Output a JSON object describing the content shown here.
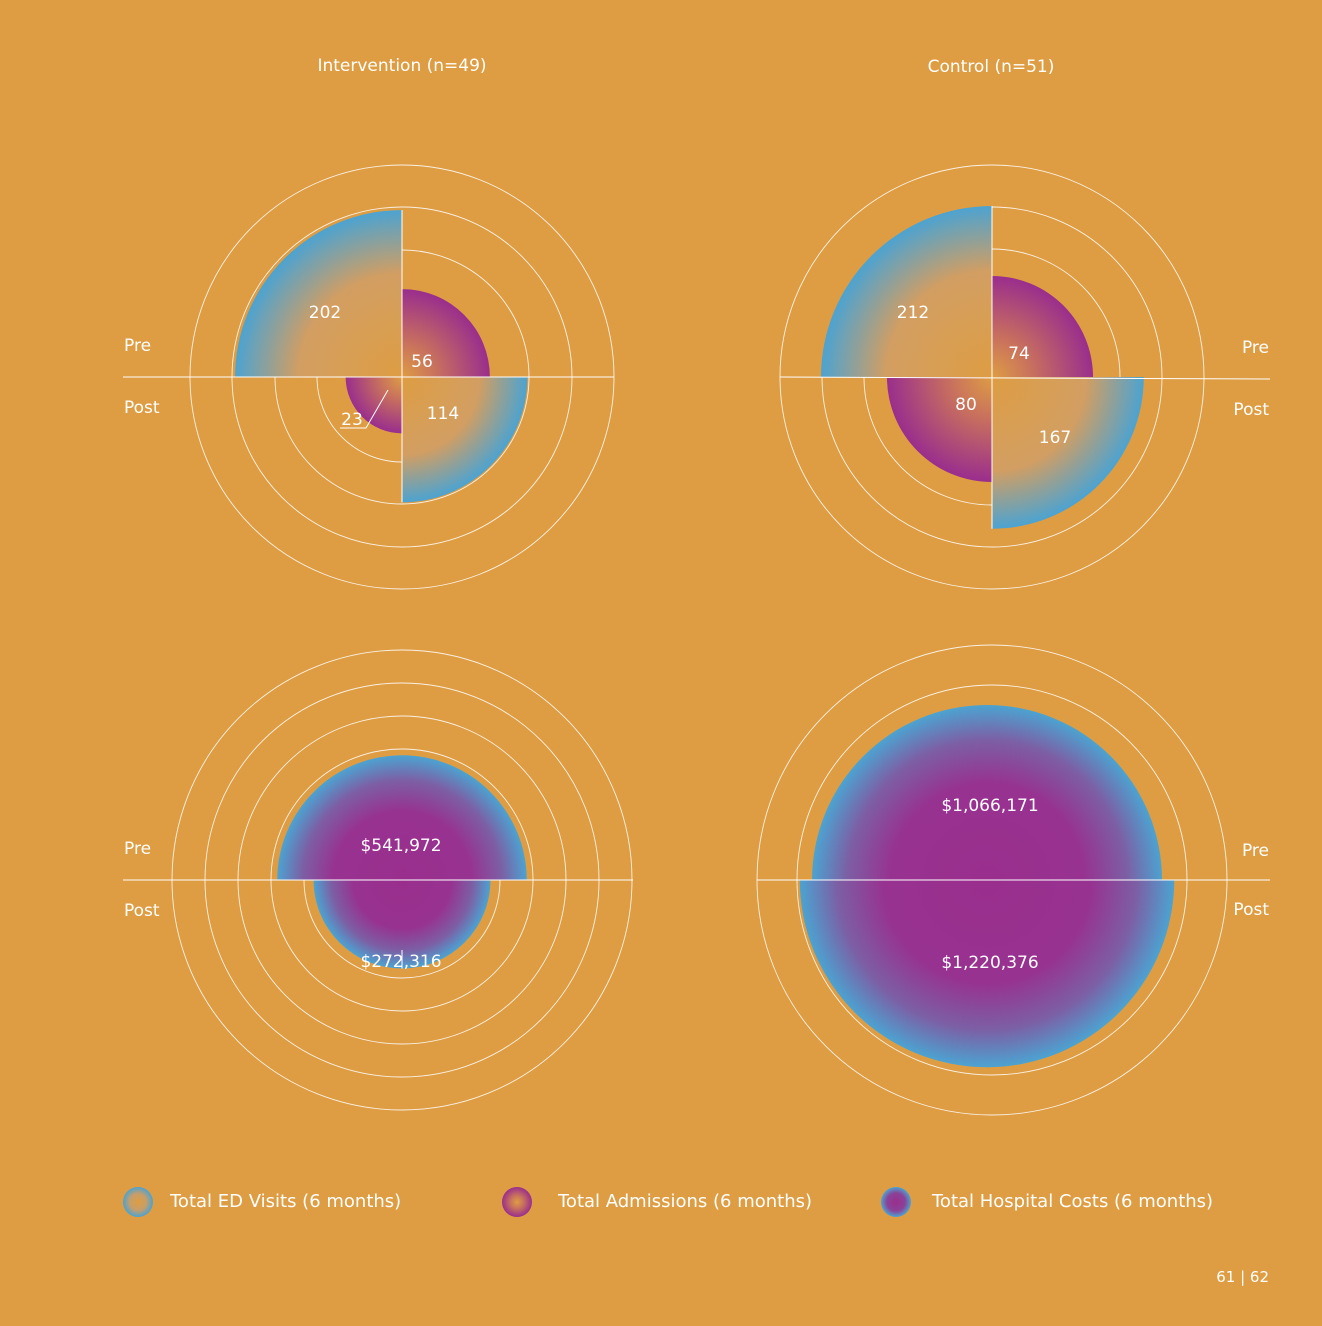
{
  "page": {
    "background": "#DE9D43",
    "page_number": "61 | 62"
  },
  "colors": {
    "ed_edge": "#4CA3D1",
    "admission_core": "#9A2E8D",
    "cost_core": "#9A2E8D",
    "cost_edge": "#4CA3D1",
    "ring": "#FFFFFF"
  },
  "chart_data": {
    "type": "polar-area",
    "groups": [
      {
        "key": "intervention",
        "title": "Intervention (n=49)"
      },
      {
        "key": "control",
        "title": "Control (n=51)"
      }
    ],
    "period_labels": {
      "pre": "Pre",
      "post": "Post"
    },
    "legend": [
      {
        "key": "ed",
        "label": "Total ED Visits (6 months)"
      },
      {
        "key": "admissions",
        "label": "Total Admissions (6 months)"
      },
      {
        "key": "costs",
        "label": "Total Hospital Costs (6 months)"
      }
    ],
    "visits_admissions": {
      "intervention": {
        "ed": {
          "pre": 202,
          "post": 114
        },
        "admissions": {
          "pre": 56,
          "post": 23
        }
      },
      "control": {
        "ed": {
          "pre": 212,
          "post": 167
        },
        "admissions": {
          "pre": 74,
          "post": 80
        }
      },
      "value_labels": {
        "intervention": {
          "ed_pre": "202",
          "ed_post": "114",
          "adm_pre": "56",
          "adm_post": "23"
        },
        "control": {
          "ed_pre": "212",
          "ed_post": "167",
          "adm_pre": "74",
          "adm_post": "80"
        }
      }
    },
    "hospital_costs": {
      "intervention": {
        "pre": 541972,
        "post": 272316
      },
      "control": {
        "pre": 1066171,
        "post": 1220376
      },
      "value_labels": {
        "intervention": {
          "pre": "$541,972",
          "post": "$272,316"
        },
        "control": {
          "pre": "$1,066,171",
          "post": "$1,220,376"
        }
      }
    }
  }
}
